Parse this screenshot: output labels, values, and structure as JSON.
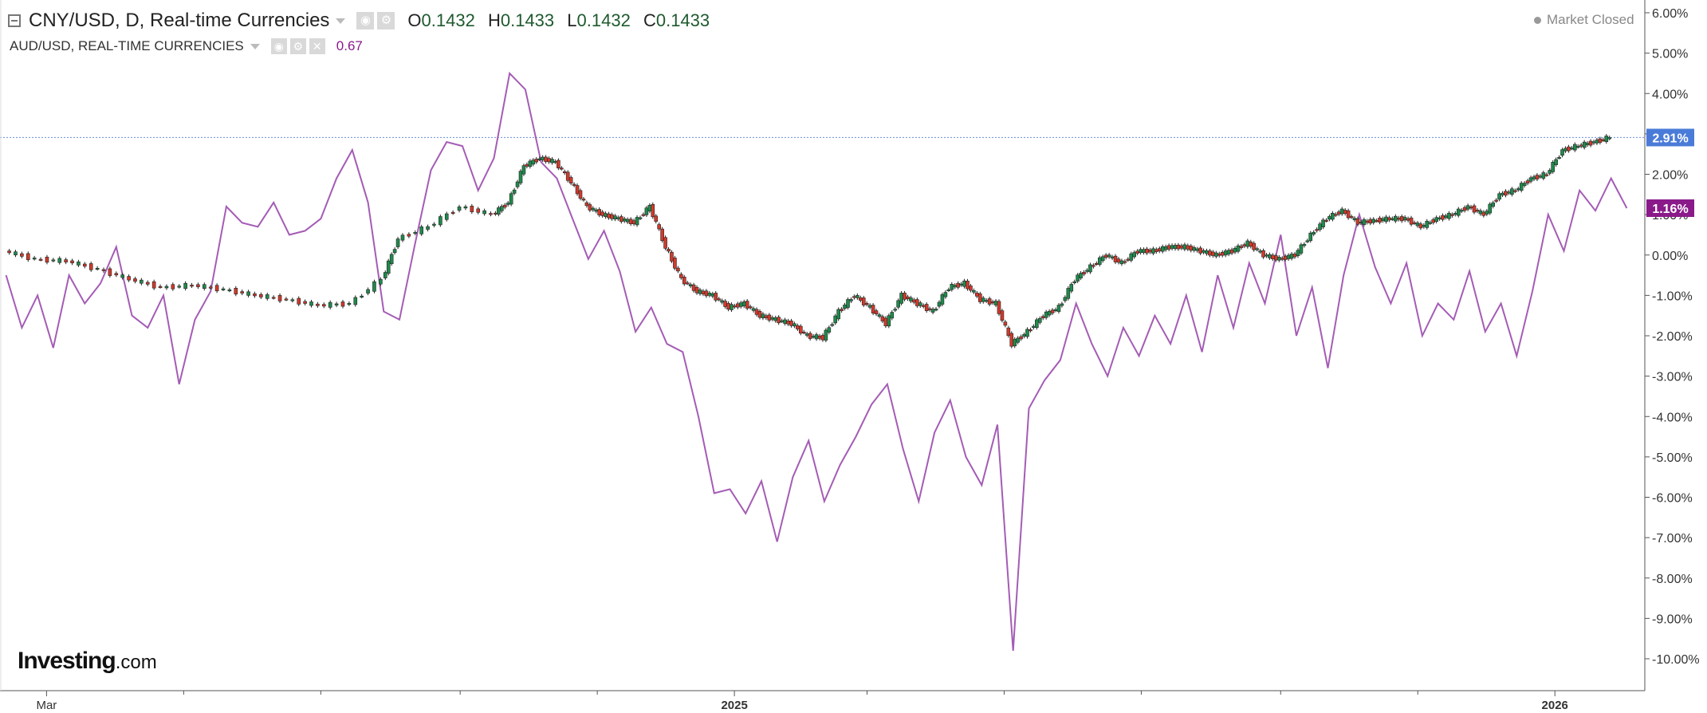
{
  "header": {
    "symbol_line": "CNY/USD, D, Real-time Currencies",
    "ohlc": {
      "o_label": "O",
      "o": "0.1432",
      "h_label": "H",
      "h": "0.1433",
      "l_label": "L",
      "l": "0.1432",
      "c_label": "C",
      "c": "0.1433"
    },
    "compare_line": "AUD/USD, REAL-TIME CURRENCIES",
    "compare_value": "0.67",
    "market_status": "Market Closed"
  },
  "logo": {
    "main": "Investing",
    "suffix": ".com"
  },
  "colors": {
    "up": "#1f8a4c",
    "down": "#d13a2c",
    "compare_line": "#a45cb5",
    "price_badge": "#4a7bd8",
    "compare_badge": "#8a1a8a",
    "grid_line": "#6a8fd6"
  },
  "chart_data": {
    "type": "line",
    "title": "",
    "xlabel": "",
    "ylabel": "",
    "ylim": [
      -10.8,
      6.2
    ],
    "y_ticks": [
      6,
      5,
      4,
      3,
      2,
      1,
      0,
      -1,
      -2,
      -3,
      -4,
      -5,
      -6,
      -7,
      -8,
      -9,
      -10
    ],
    "y_tick_labels": [
      "6.00%",
      "5.00%",
      "4.00%",
      "3.00%",
      "2.00%",
      "1.00%",
      "0.00%",
      "-1.00%",
      "-2.00%",
      "-3.00%",
      "-4.00%",
      "-5.00%",
      "-6.00%",
      "-7.00%",
      "-8.00%",
      "-9.00%",
      "-10.00%"
    ],
    "x_range": [
      "2024-02-10",
      "2026-02-10"
    ],
    "x_tick_labels": [
      {
        "date": "2024-03-01",
        "label": "Mar"
      },
      {
        "date": "2025-01-01",
        "label": "2025"
      },
      {
        "date": "2026-01-01",
        "label": "2026"
      }
    ],
    "x_minor_ticks": [
      "2024-05-01",
      "2024-07-01",
      "2024-09-01",
      "2024-11-01",
      "2025-03-01",
      "2025-05-01",
      "2025-07-01",
      "2025-09-01",
      "2025-11-01"
    ],
    "last_value_labels": {
      "cny": "2.91%",
      "aud": "1.16%"
    },
    "series": [
      {
        "symbol": "CNY/USD",
        "style": "candlestick",
        "points": [
          [
            "2024-02-12",
            0.1
          ],
          [
            "2024-02-26",
            -0.1
          ],
          [
            "2024-03-11",
            -0.15
          ],
          [
            "2024-03-25",
            -0.35
          ],
          [
            "2024-04-08",
            -0.6
          ],
          [
            "2024-04-22",
            -0.8
          ],
          [
            "2024-05-06",
            -0.75
          ],
          [
            "2024-05-20",
            -0.85
          ],
          [
            "2024-06-03",
            -1.0
          ],
          [
            "2024-06-17",
            -1.1
          ],
          [
            "2024-07-01",
            -1.25
          ],
          [
            "2024-07-15",
            -1.2
          ],
          [
            "2024-07-29",
            -0.6
          ],
          [
            "2024-08-05",
            0.4
          ],
          [
            "2024-08-19",
            0.7
          ],
          [
            "2024-09-02",
            1.2
          ],
          [
            "2024-09-16",
            1.0
          ],
          [
            "2024-09-23",
            1.3
          ],
          [
            "2024-09-30",
            2.2
          ],
          [
            "2024-10-07",
            2.4
          ],
          [
            "2024-10-14",
            2.3
          ],
          [
            "2024-10-21",
            1.8
          ],
          [
            "2024-10-28",
            1.2
          ],
          [
            "2024-11-04",
            1.0
          ],
          [
            "2024-11-11",
            0.9
          ],
          [
            "2024-11-18",
            0.8
          ],
          [
            "2024-11-25",
            1.2
          ],
          [
            "2024-12-02",
            0.2
          ],
          [
            "2024-12-09",
            -0.6
          ],
          [
            "2024-12-16",
            -0.9
          ],
          [
            "2024-12-23",
            -1.0
          ],
          [
            "2024-12-30",
            -1.3
          ],
          [
            "2025-01-06",
            -1.2
          ],
          [
            "2025-01-13",
            -1.5
          ],
          [
            "2025-01-20",
            -1.6
          ],
          [
            "2025-01-27",
            -1.7
          ],
          [
            "2025-02-03",
            -2.0
          ],
          [
            "2025-02-10",
            -2.05
          ],
          [
            "2025-02-17",
            -1.4
          ],
          [
            "2025-02-24",
            -1.0
          ],
          [
            "2025-03-03",
            -1.3
          ],
          [
            "2025-03-10",
            -1.7
          ],
          [
            "2025-03-17",
            -1.0
          ],
          [
            "2025-03-24",
            -1.2
          ],
          [
            "2025-03-31",
            -1.4
          ],
          [
            "2025-04-07",
            -0.8
          ],
          [
            "2025-04-14",
            -0.7
          ],
          [
            "2025-04-21",
            -1.1
          ],
          [
            "2025-04-28",
            -1.2
          ],
          [
            "2025-05-05",
            -2.2
          ],
          [
            "2025-05-12",
            -1.9
          ],
          [
            "2025-05-19",
            -1.5
          ],
          [
            "2025-05-26",
            -1.3
          ],
          [
            "2025-06-02",
            -0.6
          ],
          [
            "2025-06-09",
            -0.3
          ],
          [
            "2025-06-16",
            0.0
          ],
          [
            "2025-06-23",
            -0.2
          ],
          [
            "2025-06-30",
            0.1
          ],
          [
            "2025-07-07",
            0.1
          ],
          [
            "2025-07-14",
            0.2
          ],
          [
            "2025-07-21",
            0.2
          ],
          [
            "2025-07-28",
            0.1
          ],
          [
            "2025-08-04",
            0.0
          ],
          [
            "2025-08-11",
            0.1
          ],
          [
            "2025-08-18",
            0.3
          ],
          [
            "2025-08-25",
            0.0
          ],
          [
            "2025-09-01",
            -0.1
          ],
          [
            "2025-09-08",
            0.0
          ],
          [
            "2025-09-15",
            0.5
          ],
          [
            "2025-09-22",
            0.9
          ],
          [
            "2025-09-29",
            1.1
          ],
          [
            "2025-10-06",
            0.8
          ],
          [
            "2025-10-13",
            0.85
          ],
          [
            "2025-10-20",
            0.9
          ],
          [
            "2025-10-27",
            0.9
          ],
          [
            "2025-11-03",
            0.7
          ],
          [
            "2025-11-10",
            0.9
          ],
          [
            "2025-11-17",
            1.0
          ],
          [
            "2025-11-24",
            1.2
          ],
          [
            "2025-12-01",
            1.0
          ],
          [
            "2025-12-08",
            1.5
          ],
          [
            "2025-12-15",
            1.6
          ],
          [
            "2025-12-22",
            1.9
          ],
          [
            "2025-12-29",
            2.0
          ],
          [
            "2026-01-05",
            2.6
          ],
          [
            "2026-01-12",
            2.7
          ],
          [
            "2026-01-19",
            2.8
          ],
          [
            "2026-01-26",
            2.91
          ]
        ]
      },
      {
        "symbol": "AUD/USD",
        "style": "line",
        "points": [
          [
            "2024-02-12",
            -0.5
          ],
          [
            "2024-02-19",
            -1.8
          ],
          [
            "2024-02-26",
            -1.0
          ],
          [
            "2024-03-04",
            -2.3
          ],
          [
            "2024-03-11",
            -0.5
          ],
          [
            "2024-03-18",
            -1.2
          ],
          [
            "2024-03-25",
            -0.7
          ],
          [
            "2024-04-01",
            0.2
          ],
          [
            "2024-04-08",
            -1.5
          ],
          [
            "2024-04-15",
            -1.8
          ],
          [
            "2024-04-22",
            -1.0
          ],
          [
            "2024-04-29",
            -3.2
          ],
          [
            "2024-05-06",
            -1.6
          ],
          [
            "2024-05-13",
            -0.9
          ],
          [
            "2024-05-20",
            1.2
          ],
          [
            "2024-05-27",
            0.8
          ],
          [
            "2024-06-03",
            0.7
          ],
          [
            "2024-06-10",
            1.3
          ],
          [
            "2024-06-17",
            0.5
          ],
          [
            "2024-06-24",
            0.6
          ],
          [
            "2024-07-01",
            0.9
          ],
          [
            "2024-07-08",
            1.9
          ],
          [
            "2024-07-15",
            2.6
          ],
          [
            "2024-07-22",
            1.3
          ],
          [
            "2024-07-29",
            -1.4
          ],
          [
            "2024-08-05",
            -1.6
          ],
          [
            "2024-08-12",
            0.3
          ],
          [
            "2024-08-19",
            2.1
          ],
          [
            "2024-08-26",
            2.8
          ],
          [
            "2024-09-02",
            2.7
          ],
          [
            "2024-09-09",
            1.6
          ],
          [
            "2024-09-16",
            2.4
          ],
          [
            "2024-09-23",
            4.5
          ],
          [
            "2024-09-30",
            4.1
          ],
          [
            "2024-10-07",
            2.3
          ],
          [
            "2024-10-14",
            1.9
          ],
          [
            "2024-10-21",
            0.9
          ],
          [
            "2024-10-28",
            -0.1
          ],
          [
            "2024-11-04",
            0.6
          ],
          [
            "2024-11-11",
            -0.4
          ],
          [
            "2024-11-18",
            -1.9
          ],
          [
            "2024-11-25",
            -1.3
          ],
          [
            "2024-12-02",
            -2.2
          ],
          [
            "2024-12-09",
            -2.4
          ],
          [
            "2024-12-16",
            -4.0
          ],
          [
            "2024-12-23",
            -5.9
          ],
          [
            "2024-12-30",
            -5.8
          ],
          [
            "2025-01-06",
            -6.4
          ],
          [
            "2025-01-13",
            -5.6
          ],
          [
            "2025-01-20",
            -7.1
          ],
          [
            "2025-01-27",
            -5.5
          ],
          [
            "2025-02-03",
            -4.6
          ],
          [
            "2025-02-10",
            -6.1
          ],
          [
            "2025-02-17",
            -5.2
          ],
          [
            "2025-02-24",
            -4.5
          ],
          [
            "2025-03-03",
            -3.7
          ],
          [
            "2025-03-10",
            -3.2
          ],
          [
            "2025-03-17",
            -4.8
          ],
          [
            "2025-03-24",
            -6.1
          ],
          [
            "2025-03-31",
            -4.4
          ],
          [
            "2025-04-07",
            -3.6
          ],
          [
            "2025-04-14",
            -5.0
          ],
          [
            "2025-04-21",
            -5.7
          ],
          [
            "2025-04-28",
            -4.2
          ],
          [
            "2025-05-05",
            -9.8
          ],
          [
            "2025-05-12",
            -3.8
          ],
          [
            "2025-05-19",
            -3.1
          ],
          [
            "2025-05-26",
            -2.6
          ],
          [
            "2025-06-02",
            -1.2
          ],
          [
            "2025-06-09",
            -2.2
          ],
          [
            "2025-06-16",
            -3.0
          ],
          [
            "2025-06-23",
            -1.8
          ],
          [
            "2025-06-30",
            -2.5
          ],
          [
            "2025-07-07",
            -1.5
          ],
          [
            "2025-07-14",
            -2.2
          ],
          [
            "2025-07-21",
            -1.0
          ],
          [
            "2025-07-28",
            -2.4
          ],
          [
            "2025-08-04",
            -0.5
          ],
          [
            "2025-08-11",
            -1.8
          ],
          [
            "2025-08-18",
            -0.2
          ],
          [
            "2025-08-25",
            -1.2
          ],
          [
            "2025-09-01",
            0.5
          ],
          [
            "2025-09-08",
            -2.0
          ],
          [
            "2025-09-15",
            -0.8
          ],
          [
            "2025-09-22",
            -2.8
          ],
          [
            "2025-09-29",
            -0.5
          ],
          [
            "2025-10-06",
            1.0
          ],
          [
            "2025-10-13",
            -0.3
          ],
          [
            "2025-10-20",
            -1.2
          ],
          [
            "2025-10-27",
            -0.2
          ],
          [
            "2025-11-03",
            -2.0
          ],
          [
            "2025-11-10",
            -1.2
          ],
          [
            "2025-11-17",
            -1.6
          ],
          [
            "2025-11-24",
            -0.4
          ],
          [
            "2025-12-01",
            -1.9
          ],
          [
            "2025-12-08",
            -1.2
          ],
          [
            "2025-12-15",
            -2.5
          ],
          [
            "2025-12-22",
            -0.9
          ],
          [
            "2025-12-29",
            1.0
          ],
          [
            "2026-01-05",
            0.1
          ],
          [
            "2026-01-12",
            1.6
          ],
          [
            "2026-01-19",
            1.1
          ],
          [
            "2026-01-26",
            1.9
          ],
          [
            "2026-02-02",
            1.16
          ]
        ]
      }
    ]
  }
}
